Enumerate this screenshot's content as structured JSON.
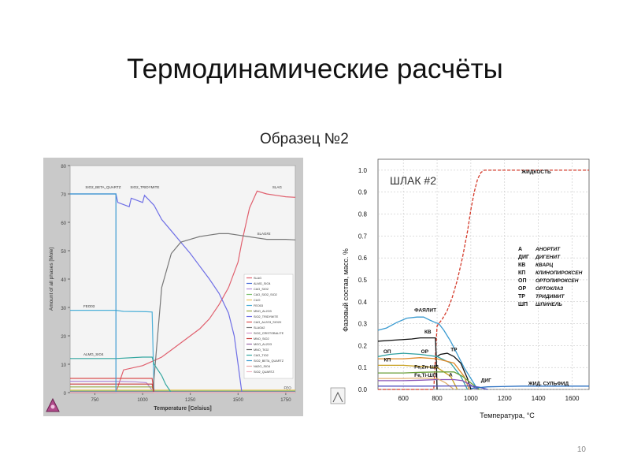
{
  "slide": {
    "title": "Термодинамические расчёты",
    "subtitle": "Образец №2",
    "page_number": "10"
  },
  "chart_data": [
    {
      "type": "line",
      "title": "",
      "xlabel": "Temperature [Celsius]",
      "ylabel": "Amount of all phases [Mole]",
      "xlim": [
        620,
        1800
      ],
      "ylim": [
        0,
        80
      ],
      "xticks": [
        750,
        1000,
        1250,
        1500,
        1750
      ],
      "yticks": [
        0,
        10,
        20,
        30,
        40,
        50,
        60,
        70,
        80
      ],
      "grid": false,
      "background": "#f4f4f4",
      "legend_position": "right",
      "labels": [
        {
          "text": "SIO2_BETA_QUARTZ",
          "x": 700,
          "y": 72
        },
        {
          "text": "SIO2_TRIDYMITE",
          "x": 935,
          "y": 72
        },
        {
          "text": "SLAG",
          "x": 1680,
          "y": 72
        },
        {
          "text": "SLAG#2",
          "x": 1600,
          "y": 55.5
        },
        {
          "text": "FEO03",
          "x": 690,
          "y": 30
        },
        {
          "text": "ALMG_SIO4",
          "x": 690,
          "y": 13
        },
        {
          "text": "FEO",
          "x": 1740,
          "y": 1.2
        }
      ],
      "series": [
        {
          "name": "SLAG",
          "color": "#e0606e",
          "x": [
            620,
            860,
            900,
            1000,
            1050,
            1100,
            1150,
            1200,
            1250,
            1300,
            1350,
            1400,
            1450,
            1500,
            1520,
            1560,
            1600,
            1650,
            1700,
            1750,
            1800
          ],
          "y": [
            0,
            0,
            8,
            9.5,
            11,
            12.5,
            15,
            17.5,
            20,
            22.5,
            26,
            31,
            37,
            46,
            53,
            65,
            71,
            70,
            69.5,
            69,
            68.8
          ]
        },
        {
          "name": "ALMG_SIO4",
          "color": "#4a6fd6",
          "x": [
            620,
            1300,
            1550,
            1800
          ],
          "y": [
            0.3,
            0.3,
            0.3,
            0.3
          ]
        },
        {
          "name": "CAO_SIO2",
          "color": "#b08ad8",
          "x": [
            620,
            860,
            960,
            1020,
            1060
          ],
          "y": [
            4,
            4,
            3.8,
            3.5,
            0
          ]
        },
        {
          "name": "CAO_SIO2_SIO2",
          "color": "#7cc06f",
          "x": [
            620,
            1300,
            1550,
            1800
          ],
          "y": [
            0.6,
            0.6,
            0.6,
            0.6
          ]
        },
        {
          "name": "CUO",
          "color": "#e8c35a",
          "x": [
            620,
            1300,
            1550,
            1800
          ],
          "y": [
            0.9,
            0.9,
            0.9,
            0.9
          ]
        },
        {
          "name": "FEO03",
          "color": "#4db0d8",
          "x": [
            620,
            860,
            900,
            1020,
            1050,
            1060
          ],
          "y": [
            29,
            29,
            28.6,
            28.5,
            28.4,
            0
          ]
        },
        {
          "name": "MNO_AL2O3",
          "color": "#98a840",
          "x": [
            620,
            860,
            1000,
            1050,
            1060
          ],
          "y": [
            2,
            2,
            2,
            2,
            0
          ]
        },
        {
          "name": "SIO2_TRIDYMITE",
          "color": "#6f6fe6",
          "x": [
            620,
            860,
            870,
            930,
            940,
            1000,
            1010,
            1060,
            1100,
            1150,
            1200,
            1250,
            1300,
            1350,
            1400,
            1450,
            1480,
            1500,
            1520
          ],
          "y": [
            70,
            70,
            67,
            65.5,
            68.5,
            67,
            69.5,
            66,
            61,
            57,
            53,
            49,
            44.5,
            40,
            35,
            28,
            20,
            10,
            0
          ]
        },
        {
          "name": "CAO_AL2O3_SIO2X",
          "color": "#d94f4f",
          "x": [
            620,
            860,
            1000,
            1050,
            1060
          ],
          "y": [
            5,
            5,
            5,
            5,
            0
          ]
        },
        {
          "name": "SLAG#2",
          "color": "#777777",
          "x": [
            620,
            1055,
            1060,
            1100,
            1150,
            1200,
            1250,
            1300,
            1350,
            1400,
            1450,
            1500,
            1550,
            1600,
            1650,
            1700,
            1750,
            1800
          ],
          "y": [
            0,
            0,
            5,
            37,
            49,
            53,
            54,
            55,
            55.5,
            56,
            56,
            55.5,
            55,
            54.5,
            54,
            54,
            54,
            53.8
          ]
        },
        {
          "name": "SIO2_CRISTOBALITE",
          "color": "#d098c8",
          "x": [
            620,
            1300,
            1550,
            1800
          ],
          "y": [
            0.1,
            0.1,
            0.1,
            0.1
          ]
        },
        {
          "name": "MNO_SIO2",
          "color": "#c83c3c",
          "x": [
            620,
            860,
            1000,
            1050,
            1060
          ],
          "y": [
            3,
            3,
            3,
            3,
            0
          ]
        },
        {
          "name": "MGO_AL2O3",
          "color": "#9a6aa8",
          "x": [
            620,
            1300,
            1550,
            1800
          ],
          "y": [
            0.2,
            0.2,
            0.2,
            0.2
          ]
        },
        {
          "name": "MNO_TIO2",
          "color": "#5f5f5f",
          "x": [
            620,
            1300,
            1550,
            1800
          ],
          "y": [
            0.15,
            0.15,
            0.15,
            0.15
          ]
        },
        {
          "name": "CAO_TIO2",
          "color": "#35a7a0",
          "x": [
            620,
            860,
            1000,
            1050,
            1060,
            1100,
            1120,
            1150
          ],
          "y": [
            12,
            12,
            12.5,
            12.5,
            10,
            6,
            3,
            0
          ]
        },
        {
          "name": "SIO2_BETA_QUARTZ",
          "color": "#3a9ad0",
          "x": [
            620,
            860,
            860
          ],
          "y": [
            70,
            70,
            0
          ]
        },
        {
          "name": "NA2O_SIO4",
          "color": "#e7a3a3",
          "x": [
            620,
            1300,
            1550,
            1800
          ],
          "y": [
            0.05,
            0.05,
            0.05,
            0.05
          ]
        },
        {
          "name": "SIO2_QUARTZ",
          "color": "#f2b5c4",
          "x": [
            620,
            1300,
            1550,
            1800
          ],
          "y": [
            0.08,
            0.08,
            0.08,
            0.08
          ]
        }
      ]
    },
    {
      "type": "line",
      "title": "ШЛАК #2",
      "xlabel": "Температура, °С",
      "ylabel": "Фазовый состав, масс. %",
      "xlim": [
        450,
        1700
      ],
      "ylim": [
        0,
        1.05
      ],
      "xticks": [
        600,
        800,
        1000,
        1200,
        1400,
        1600
      ],
      "xtick_labels": [
        "600",
        "800",
        "1000",
        "1200",
        "1400",
        "1600"
      ],
      "yticks": [
        0,
        0.1,
        0.2,
        0.3,
        0.4,
        0.5,
        0.6,
        0.7,
        0.8,
        0.9,
        1.0
      ],
      "ytick_labels": [
        "0.0",
        "0.1",
        "0.2",
        "0.3",
        "0.4",
        "0.5",
        "0.6",
        "0.7",
        "0.8",
        "0.9",
        "1.0"
      ],
      "grid": true,
      "background": "#ffffff",
      "legend_position": "right",
      "legend": [
        {
          "abbr": "А",
          "name": "АНОРТИТ"
        },
        {
          "abbr": "ДИГ",
          "name": "ДИГЕНИТ"
        },
        {
          "abbr": "КВ",
          "name": "КВАРЦ"
        },
        {
          "abbr": "КП",
          "name": "КЛИНОПИРОКСЕН"
        },
        {
          "abbr": "ОП",
          "name": "ОРТОПИРОКСЕН"
        },
        {
          "abbr": "ОР",
          "name": "ОРТОКЛАЗ"
        },
        {
          "abbr": "ТР",
          "name": "ТРИДИМИТ"
        },
        {
          "abbr": "ШП",
          "name": "ШПИНЕЛЬ"
        }
      ],
      "labels": [
        {
          "text": "ЖИДКОСТЬ",
          "x": 1300,
          "y": 0.985
        },
        {
          "text": "ФАЯЛИТ",
          "x": 665,
          "y": 0.355
        },
        {
          "text": "КВ",
          "x": 725,
          "y": 0.255
        },
        {
          "text": "ТР",
          "x": 880,
          "y": 0.175
        },
        {
          "text": "ОП",
          "x": 482,
          "y": 0.165
        },
        {
          "text": "ОР",
          "x": 705,
          "y": 0.165
        },
        {
          "text": "КП",
          "x": 485,
          "y": 0.128
        },
        {
          "text": "Fe,Zn-ШП",
          "x": 665,
          "y": 0.095
        },
        {
          "text": "Fe,Ti-ШП",
          "x": 665,
          "y": 0.057
        },
        {
          "text": "А",
          "x": 870,
          "y": 0.06
        },
        {
          "text": "ДИГ",
          "x": 1060,
          "y": 0.035
        },
        {
          "text": "ЖИД. СУЛЬФИД",
          "x": 1340,
          "y": 0.02
        }
      ],
      "series": [
        {
          "name": "ЖИДКОСТЬ",
          "color": "#d43a2a",
          "dashed": true,
          "x": [
            450,
            780,
            800,
            830,
            860,
            890,
            920,
            950,
            980,
            1000,
            1020,
            1040,
            1060,
            1080,
            1100,
            1200,
            1400,
            1600,
            1700
          ],
          "y": [
            0,
            0,
            0.29,
            0.32,
            0.36,
            0.42,
            0.5,
            0.6,
            0.72,
            0.82,
            0.9,
            0.96,
            0.99,
            1.0,
            1.0,
            1.0,
            1.0,
            1.0,
            1.0
          ]
        },
        {
          "name": "ФАЯЛИТ",
          "color": "#3a9ad0",
          "dashed": false,
          "x": [
            450,
            500,
            560,
            620,
            680,
            720,
            760,
            790,
            810,
            840,
            880,
            920,
            960,
            1000,
            1040
          ],
          "y": [
            0.27,
            0.28,
            0.305,
            0.325,
            0.33,
            0.33,
            0.315,
            0.305,
            0.3,
            0.27,
            0.22,
            0.16,
            0.1,
            0.05,
            0.0
          ]
        },
        {
          "name": "КВ",
          "color": "#111111",
          "dashed": false,
          "x": [
            450,
            550,
            650,
            700,
            760,
            790,
            795,
            800
          ],
          "y": [
            0.22,
            0.225,
            0.23,
            0.235,
            0.235,
            0.235,
            0.15,
            0.0
          ]
        },
        {
          "name": "ТР",
          "color": "#111111",
          "dashed": false,
          "x": [
            800,
            820,
            860,
            900,
            940,
            980,
            1000
          ],
          "y": [
            0.15,
            0.16,
            0.165,
            0.15,
            0.12,
            0.05,
            0.0
          ]
        },
        {
          "name": "ОП",
          "color": "#30a0a0",
          "dashed": false,
          "x": [
            450,
            520,
            600,
            700,
            800,
            880,
            940,
            980
          ],
          "y": [
            0.15,
            0.16,
            0.165,
            0.16,
            0.15,
            0.12,
            0.06,
            0.0
          ]
        },
        {
          "name": "ОР",
          "color": "#e08a2a",
          "dashed": false,
          "x": [
            450,
            600,
            700,
            800,
            900,
            960,
            990
          ],
          "y": [
            0.14,
            0.14,
            0.145,
            0.14,
            0.12,
            0.06,
            0.0
          ]
        },
        {
          "name": "КП",
          "color": "#c8a020",
          "dashed": false,
          "x": [
            450,
            600,
            700,
            800,
            880,
            920
          ],
          "y": [
            0.11,
            0.11,
            0.105,
            0.1,
            0.06,
            0.0
          ]
        },
        {
          "name": "Fe,Zn-ШП",
          "color": "#6a9f3a",
          "dashed": false,
          "x": [
            450,
            600,
            700,
            800,
            900,
            950,
            1000,
            1050
          ],
          "y": [
            0.075,
            0.075,
            0.078,
            0.08,
            0.08,
            0.06,
            0.03,
            0.0
          ]
        },
        {
          "name": "Fe,Ti-ШП",
          "color": "#8a56b8",
          "dashed": false,
          "x": [
            450,
            600,
            700,
            800,
            900,
            950,
            1000,
            1040
          ],
          "y": [
            0.04,
            0.04,
            0.042,
            0.045,
            0.045,
            0.04,
            0.02,
            0.0
          ]
        },
        {
          "name": "А",
          "color": "#e0b070",
          "dashed": false,
          "x": [
            450,
            600,
            700,
            800,
            850,
            900
          ],
          "y": [
            0.05,
            0.05,
            0.052,
            0.05,
            0.03,
            0.0
          ]
        },
        {
          "name": "ДИГ",
          "color": "#5050c0",
          "dashed": false,
          "x": [
            450,
            700,
            900,
            1000,
            1050,
            1100
          ],
          "y": [
            0.015,
            0.015,
            0.016,
            0.016,
            0.01,
            0.0
          ]
        },
        {
          "name": "ЖИД. СУЛЬФИД",
          "color": "#2a6fc0",
          "dashed": false,
          "x": [
            1000,
            1100,
            1300,
            1500,
            1700
          ],
          "y": [
            0.005,
            0.012,
            0.015,
            0.015,
            0.015
          ]
        }
      ]
    }
  ]
}
